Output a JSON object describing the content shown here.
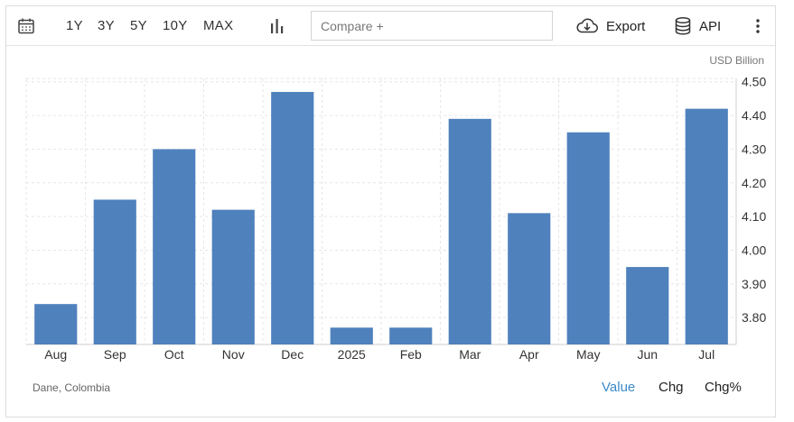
{
  "toolbar": {
    "calendar_icon": "calendar-icon",
    "ranges": [
      "1Y",
      "3Y",
      "5Y",
      "10Y",
      "MAX"
    ],
    "chart_type_icon": "bar-chart-icon",
    "compare_placeholder": "Compare +",
    "export_label": "Export",
    "api_label": "API",
    "more_icon": "more-vertical-icon"
  },
  "footer": {
    "source": "Dane, Colombia",
    "views": [
      "Value",
      "Chg",
      "Chg%"
    ],
    "active_view": "Value"
  },
  "colors": {
    "bar": "#4f81bd",
    "active_link": "#3a8ac9",
    "grid": "#e6e6e6"
  },
  "chart_data": {
    "type": "bar",
    "title": "",
    "xlabel": "",
    "ylabel": "",
    "unit": "USD Billion",
    "categories": [
      "Aug",
      "Sep",
      "Oct",
      "Nov",
      "Dec",
      "2025",
      "Feb",
      "Mar",
      "Apr",
      "May",
      "Jun",
      "Jul"
    ],
    "values": [
      3.84,
      4.15,
      4.3,
      4.12,
      4.47,
      3.77,
      3.77,
      4.39,
      4.11,
      4.35,
      3.95,
      4.42
    ],
    "yticks": [
      "3.80",
      "3.90",
      "4.00",
      "4.10",
      "4.20",
      "4.30",
      "4.40",
      "4.50"
    ],
    "ylim": [
      3.72,
      4.51
    ],
    "y_axis_side": "right",
    "grid": true,
    "legend": "none"
  }
}
